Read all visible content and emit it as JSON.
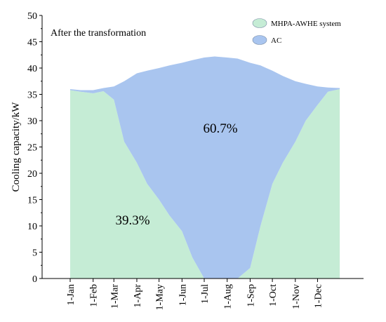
{
  "chart_data": {
    "type": "area",
    "stacked": true,
    "annotation": "After the transformation",
    "xlabel": "",
    "ylabel": "Cooling capacity/kW",
    "ylim": [
      0,
      50
    ],
    "yticks": [
      0,
      5,
      10,
      15,
      20,
      25,
      30,
      35,
      40,
      45,
      50
    ],
    "xlim": [
      "1-Jan",
      "31-Dec"
    ],
    "month_ticks": [
      "1-Jan",
      "1-Feb",
      "1-Mar",
      "1-Apr",
      "1-May",
      "1-Jun",
      "1-Jul",
      "1-Aug",
      "1-Sep",
      "1-Oct",
      "1-Nov",
      "1-Dec"
    ],
    "grid": false,
    "legend": {
      "position": "top-right"
    },
    "colors": {
      "MHPA-AWHE system": "#c5ecd5",
      "AC": "#a9c5ef"
    },
    "x": [
      "1-Jan",
      "15-Jan",
      "1-Feb",
      "15-Feb",
      "1-Mar",
      "15-Mar",
      "1-Apr",
      "15-Apr",
      "1-May",
      "15-May",
      "1-Jun",
      "15-Jun",
      "1-Jul",
      "15-Jul",
      "1-Aug",
      "15-Aug",
      "1-Sep",
      "15-Sep",
      "1-Oct",
      "15-Oct",
      "1-Nov",
      "15-Nov",
      "1-Dec",
      "15-Dec",
      "31-Dec"
    ],
    "series": [
      {
        "name": "MHPA-AWHE system",
        "values": [
          35.8,
          35.5,
          35.2,
          35.6,
          34.0,
          26.0,
          22.0,
          18.0,
          15.0,
          12.0,
          9.0,
          4.0,
          0,
          0,
          0,
          0,
          2.0,
          10.0,
          18.0,
          22.0,
          26.0,
          30.0,
          33.0,
          35.5,
          36.0
        ]
      },
      {
        "name": "AC",
        "values": [
          0.2,
          0.3,
          0.6,
          0.6,
          2.5,
          11.5,
          17.0,
          21.5,
          25.0,
          28.5,
          32.0,
          37.5,
          42.0,
          42.2,
          42.0,
          41.8,
          39.0,
          30.5,
          21.5,
          16.5,
          11.5,
          7.0,
          3.5,
          0.8,
          0.2
        ]
      }
    ],
    "labels": {
      "MHPA-AWHE system": "39.3%",
      "AC": "60.7%"
    }
  }
}
